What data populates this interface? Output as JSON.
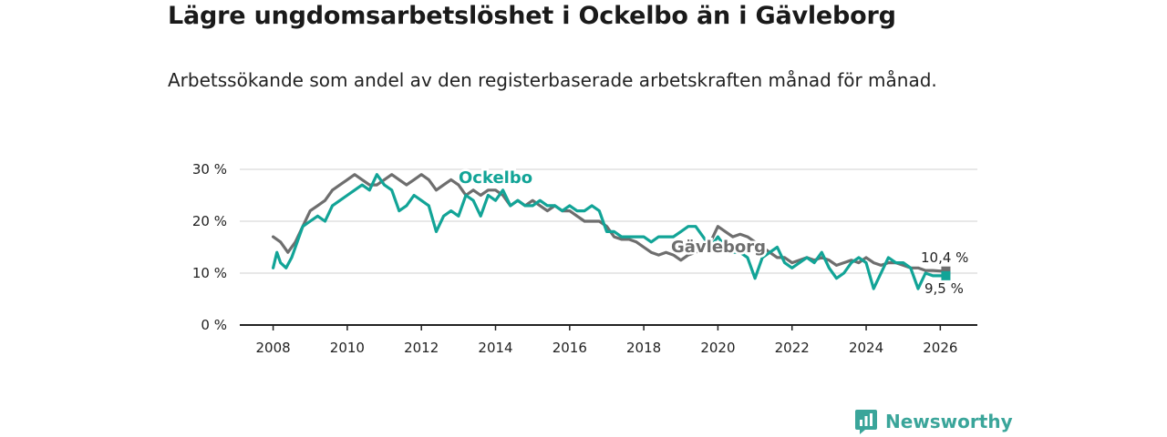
{
  "title": "Lägre ungdomsarbetslöshet i Ockelbo än i Gävleborg",
  "subtitle": "Arbetssökande som andel av den registerbaserade arbetskraften månad för månad.",
  "brand": "Newsworthy",
  "colors": {
    "ockelbo": "#12a497",
    "gavleborg": "#6e6e6e",
    "grid": "#d9d9d9",
    "axis": "#222222",
    "brand": "#3aa59a"
  },
  "chart_data": {
    "type": "line",
    "title": "Lägre ungdomsarbetslöshet i Ockelbo än i Gävleborg",
    "xlabel": "",
    "ylabel": "",
    "xlim": [
      2007.1,
      2027.0
    ],
    "ylim": [
      0,
      30
    ],
    "y_ticks": [
      0,
      10,
      20,
      30
    ],
    "y_tick_labels": [
      "0 %",
      "10 %",
      "20 %",
      "30 %"
    ],
    "x_ticks": [
      2008,
      2010,
      2012,
      2014,
      2016,
      2018,
      2020,
      2022,
      2024,
      2026
    ],
    "x_tick_labels": [
      "2008",
      "2010",
      "2012",
      "2014",
      "2016",
      "2018",
      "2020",
      "2022",
      "2024",
      "2026"
    ],
    "series": [
      {
        "name": "Gävleborg",
        "label": "Gävleborg",
        "end_label": "10,4 %",
        "x": [
          2008.0,
          2008.2,
          2008.4,
          2008.6,
          2008.8,
          2009.0,
          2009.2,
          2009.4,
          2009.6,
          2009.8,
          2010.0,
          2010.2,
          2010.4,
          2010.6,
          2010.8,
          2011.0,
          2011.2,
          2011.4,
          2011.6,
          2011.8,
          2012.0,
          2012.2,
          2012.4,
          2012.6,
          2012.8,
          2013.0,
          2013.2,
          2013.4,
          2013.6,
          2013.8,
          2014.0,
          2014.2,
          2014.4,
          2014.6,
          2014.8,
          2015.0,
          2015.2,
          2015.4,
          2015.6,
          2015.8,
          2016.0,
          2016.2,
          2016.4,
          2016.6,
          2016.8,
          2017.0,
          2017.2,
          2017.4,
          2017.6,
          2017.8,
          2018.0,
          2018.2,
          2018.4,
          2018.6,
          2018.8,
          2019.0,
          2019.2,
          2019.4,
          2019.6,
          2019.8,
          2020.0,
          2020.2,
          2020.4,
          2020.6,
          2020.8,
          2021.0,
          2021.2,
          2021.4,
          2021.6,
          2021.8,
          2022.0,
          2022.2,
          2022.4,
          2022.6,
          2022.8,
          2023.0,
          2023.2,
          2023.4,
          2023.6,
          2023.8,
          2024.0,
          2024.2,
          2024.4,
          2024.6,
          2024.8,
          2025.0,
          2025.2,
          2025.4,
          2025.6,
          2025.8,
          2026.0,
          2026.15
        ],
        "values": [
          17,
          16,
          14,
          16,
          19,
          22,
          23,
          24,
          26,
          27,
          28,
          29,
          28,
          27,
          27,
          28,
          29,
          28,
          27,
          28,
          29,
          28,
          26,
          27,
          28,
          27,
          25,
          26,
          25,
          26,
          26,
          25,
          23,
          24,
          23,
          24,
          23,
          22,
          23,
          22,
          22,
          21,
          20,
          20,
          20,
          19,
          17,
          16.5,
          16.5,
          16,
          15,
          14,
          13.5,
          14,
          13.5,
          12.5,
          13.5,
          14,
          15,
          16,
          19,
          18,
          17,
          17.5,
          17,
          16,
          15,
          14,
          13,
          13,
          12,
          12.5,
          13,
          12.5,
          13,
          12.5,
          11.5,
          12,
          12.5,
          12,
          13,
          12,
          11.5,
          12,
          12,
          11.5,
          11,
          11,
          10.5,
          10.5,
          10.4,
          10.4
        ]
      },
      {
        "name": "Ockelbo",
        "label": "Ockelbo",
        "end_label": "9,5 %",
        "x": [
          2008.0,
          2008.1,
          2008.2,
          2008.35,
          2008.5,
          2008.6,
          2008.8,
          2009.0,
          2009.2,
          2009.4,
          2009.6,
          2009.8,
          2010.0,
          2010.2,
          2010.4,
          2010.6,
          2010.8,
          2011.0,
          2011.2,
          2011.4,
          2011.6,
          2011.8,
          2012.0,
          2012.2,
          2012.4,
          2012.6,
          2012.8,
          2013.0,
          2013.2,
          2013.4,
          2013.6,
          2013.8,
          2014.0,
          2014.2,
          2014.4,
          2014.6,
          2014.8,
          2015.0,
          2015.2,
          2015.4,
          2015.6,
          2015.8,
          2016.0,
          2016.2,
          2016.4,
          2016.6,
          2016.8,
          2017.0,
          2017.2,
          2017.4,
          2017.6,
          2017.8,
          2018.0,
          2018.2,
          2018.4,
          2018.6,
          2018.8,
          2019.0,
          2019.2,
          2019.4,
          2019.6,
          2019.8,
          2020.0,
          2020.2,
          2020.4,
          2020.6,
          2020.8,
          2021.0,
          2021.2,
          2021.4,
          2021.6,
          2021.8,
          2022.0,
          2022.2,
          2022.4,
          2022.6,
          2022.8,
          2023.0,
          2023.2,
          2023.4,
          2023.6,
          2023.8,
          2024.0,
          2024.2,
          2024.4,
          2024.6,
          2024.8,
          2025.0,
          2025.2,
          2025.4,
          2025.6,
          2025.8,
          2026.0,
          2026.15
        ],
        "values": [
          11,
          14,
          12,
          11,
          13,
          15,
          19,
          20,
          21,
          20,
          23,
          24,
          25,
          26,
          27,
          26,
          29,
          27,
          26,
          22,
          23,
          25,
          24,
          23,
          18,
          21,
          22,
          21,
          25,
          24,
          21,
          25,
          24,
          26,
          23,
          24,
          23,
          23,
          24,
          23,
          23,
          22,
          23,
          22,
          22,
          23,
          22,
          18,
          18,
          17,
          17,
          17,
          17,
          16,
          17,
          17,
          17,
          18,
          19,
          19,
          17,
          15,
          17,
          15,
          14,
          14,
          13,
          9,
          13,
          14,
          15,
          12,
          11,
          12,
          13,
          12,
          14,
          11,
          9,
          10,
          12,
          13,
          12,
          7,
          10,
          13,
          12,
          12,
          11,
          7,
          10,
          9.5,
          9.5,
          9.5
        ]
      }
    ]
  }
}
